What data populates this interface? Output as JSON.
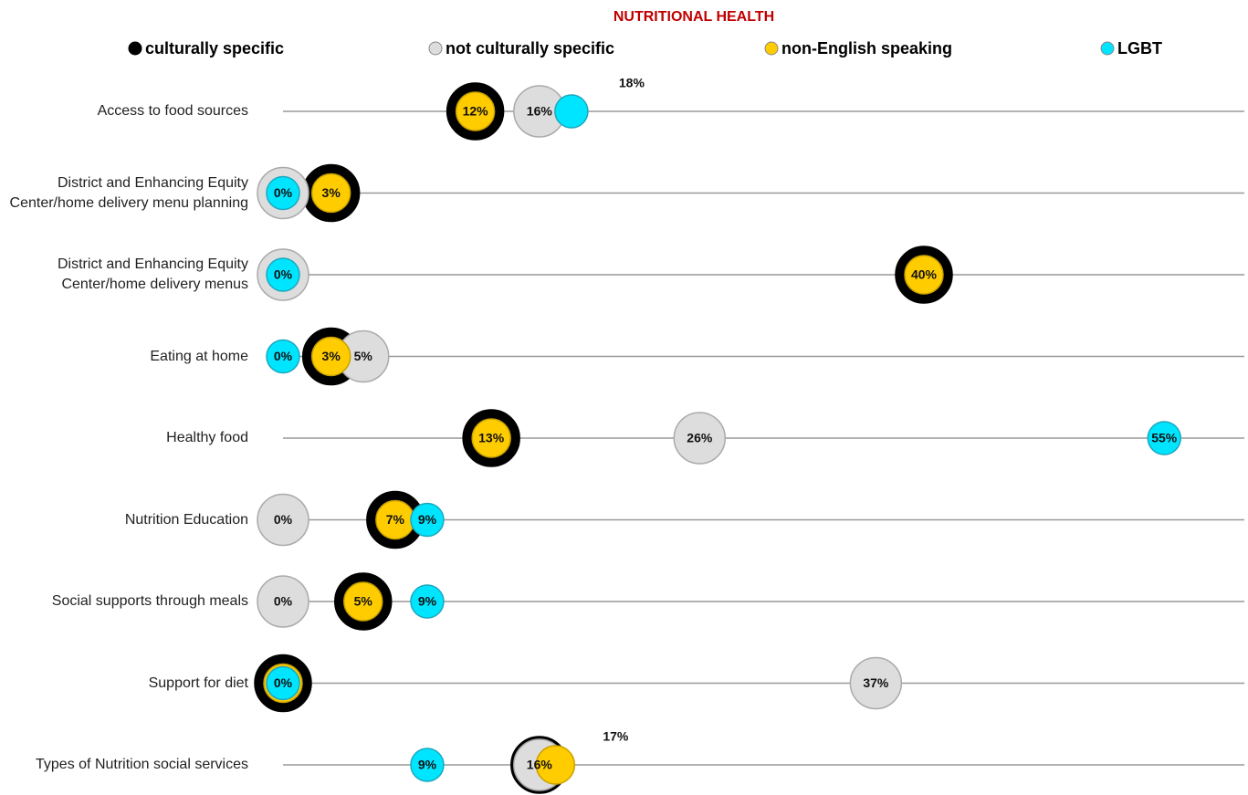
{
  "chart_data": {
    "type": "dot",
    "title": "NUTRITIONAL HEALTH",
    "categories": [
      "Access to food sources",
      "District and Enhancing Equity Center/home delivery menu planning",
      "District and Enhancing Equity Center/home delivery menus",
      "Eating at home",
      "Healthy food",
      "Nutrition Education",
      "Social supports through meals",
      "Support for diet",
      "Types of Nutrition social services"
    ],
    "xlim": [
      0,
      60
    ],
    "series": [
      {
        "name": "culturally specific",
        "color": "#000000",
        "values": [
          12,
          3,
          40,
          3,
          13,
          7,
          5,
          0,
          16
        ],
        "value_labels": [
          null,
          null,
          null,
          null,
          null,
          null,
          null,
          null,
          null
        ]
      },
      {
        "name": "not culturally specific",
        "color": "#dddddd",
        "values": [
          16,
          0,
          0,
          5,
          26,
          0,
          0,
          37,
          16
        ],
        "value_labels": [
          "16%",
          null,
          null,
          "5%",
          "26%",
          "0%",
          "0%",
          "37%",
          "16%"
        ]
      },
      {
        "name": "non-English speaking",
        "color": "#ffcc00",
        "values": [
          12,
          3,
          40,
          3,
          13,
          7,
          5,
          0,
          17
        ],
        "value_labels": [
          "12%",
          "3%",
          "40%",
          "3%",
          "13%",
          "7%",
          "5%",
          null,
          "17%"
        ]
      },
      {
        "name": "LGBT",
        "color": "#00e5ff",
        "values": [
          18,
          0,
          0,
          0,
          55,
          9,
          9,
          0,
          9
        ],
        "value_labels": [
          "18%",
          "0%",
          "0%",
          "0%",
          "55%",
          "9%",
          "9%",
          "0%",
          "9%"
        ]
      }
    ]
  }
}
